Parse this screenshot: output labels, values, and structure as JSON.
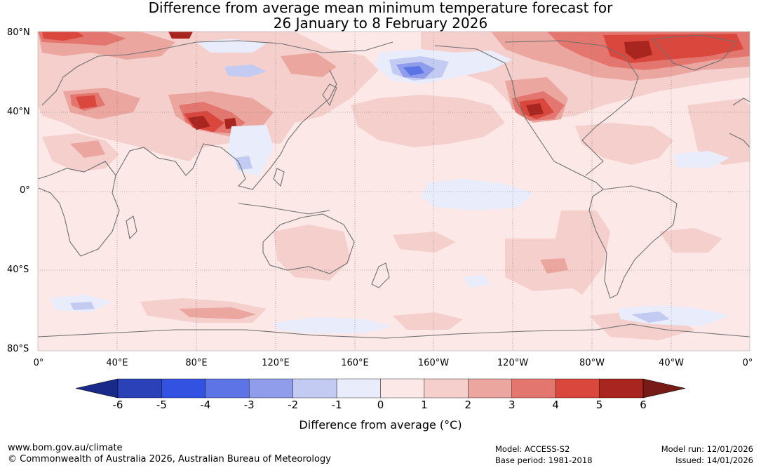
{
  "title": {
    "line1": "Difference from average mean minimum temperature forecast for",
    "line2": "26 January to 8 February 2026"
  },
  "map": {
    "projection": "equirectangular, 0° to 360°",
    "latitude_labels": [
      "80°N",
      "40°N",
      "0°",
      "40°S",
      "80°S"
    ],
    "longitude_labels": [
      "0°",
      "40°E",
      "80°E",
      "120°E",
      "160°E",
      "160°W",
      "120°W",
      "80°W",
      "40°W",
      "0°"
    ],
    "background_anomaly": "0 to 1 °C over most of the globe",
    "notable_features": [
      {
        "name": "Strong warm anomaly over northern Canada / Greenland",
        "anomaly": "4 to 6"
      },
      {
        "name": "Warm anomaly over western North America",
        "anomaly": "3 to 6"
      },
      {
        "name": "Warm anomaly over Tibetan Plateau / Himalaya",
        "anomaly": "3 to 6"
      },
      {
        "name": "Warm anomaly over northern Europe / Scandinavia",
        "anomaly": "3 to 6"
      },
      {
        "name": "Cool anomaly over Bering Sea / eastern Siberia",
        "anomaly": "-4 to -2"
      },
      {
        "name": "Slight cool anomaly in central equatorial Pacific",
        "anomaly": "-1 to 0"
      }
    ]
  },
  "colorbar": {
    "ticks": [
      "-6",
      "-5",
      "-4",
      "-3",
      "-2",
      "-1",
      "0",
      "1",
      "2",
      "3",
      "4",
      "5",
      "6"
    ],
    "label": "Difference from average (°C)",
    "colors": [
      "#1a2a8a",
      "#2a41b8",
      "#3352e2",
      "#5c74e6",
      "#8f9deb",
      "#c3cbf3",
      "#e9ecfb",
      "#fbe8e7",
      "#f4cfcc",
      "#eca6a0",
      "#e3766f",
      "#d9473d",
      "#a8261f",
      "#761b16"
    ]
  },
  "footer": {
    "website": "www.bom.gov.au/climate",
    "copyright": "© Commonwealth of Australia 2026, Australian Bureau of Meteorology",
    "model": "Model: ACCESS-S2",
    "base_period": "Base period: 1981-2018",
    "model_run": "Model run: 12/01/2026",
    "issued": "Issued: 14/01/2026"
  }
}
